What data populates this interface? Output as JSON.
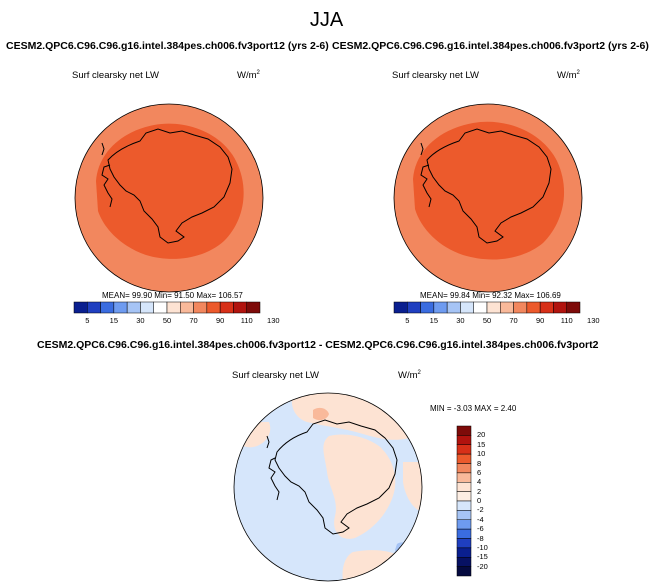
{
  "page_title": "JJA",
  "panels": [
    {
      "title": "CESM2.QPC6.C96.C96.g16.intel.384pes.ch006.fv3port12 (yrs 2-6)",
      "variable": "Surf clearsky net LW",
      "units_base": "W/m",
      "units_exp": "2",
      "stats": {
        "mean_label": "MEAN=",
        "mean": "99.90",
        "min_label": "Min=",
        "min": "91.50",
        "max_label": "Max=",
        "max": "106.57"
      }
    },
    {
      "title": "CESM2.QPC6.C96.C96.g16.intel.384pes.ch006.fv3port2 (yrs 2-6)",
      "variable": "Surf clearsky net LW",
      "units_base": "W/m",
      "units_exp": "2",
      "stats": {
        "mean_label": "MEAN=",
        "mean": "99.84",
        "min_label": "Min=",
        "min": "92.32",
        "max_label": "Max=",
        "max": "106.69"
      }
    },
    {
      "title": "CESM2.QPC6.C96.C96.g16.intel.384pes.ch006.fv3port12 - CESM2.QPC6.C96.C96.g16.intel.384pes.ch006.fv3port2",
      "variable": "Surf clearsky net LW",
      "units_base": "W/m",
      "units_exp": "2",
      "stats": {
        "min_label": "MIN =",
        "min": "-3.03",
        "max_label": "MAX =",
        "max": "2.40"
      }
    }
  ],
  "chart_data": [
    {
      "type": "heatmap",
      "projection": "south-polar stereographic",
      "title": "CESM2.QPC6.C96.C96.g16.intel.384pes.ch006.fv3port12 (yrs 2-6)",
      "variable": "Surf clearsky net LW",
      "units": "W/m2",
      "colorbar_levels": [
        "5",
        "15",
        "30",
        "50",
        "70",
        "90",
        "110",
        "130"
      ],
      "colorbar_colors": [
        "#0a1f8f",
        "#1f3fc0",
        "#3a6ce0",
        "#6e9bf0",
        "#a6c4f5",
        "#d6e6fb",
        "#ffffff",
        "#fde3d3",
        "#f9b99a",
        "#f2875e",
        "#ec5a2c",
        "#d73018",
        "#b1130e",
        "#7e0b09"
      ],
      "regions": [
        {
          "name": "outer ring",
          "value_range": [
            90,
            110
          ],
          "color": "#f2875e"
        },
        {
          "name": "interior",
          "value_range": [
            90,
            110
          ],
          "color": "#ec5a2c"
        }
      ],
      "mean": 99.9,
      "min": 91.5,
      "max": 106.57
    },
    {
      "type": "heatmap",
      "projection": "south-polar stereographic",
      "title": "CESM2.QPC6.C96.C96.g16.intel.384pes.ch006.fv3port2 (yrs 2-6)",
      "variable": "Surf clearsky net LW",
      "units": "W/m2",
      "colorbar_levels": [
        "5",
        "15",
        "30",
        "50",
        "70",
        "90",
        "110",
        "130"
      ],
      "colorbar_colors": [
        "#0a1f8f",
        "#1f3fc0",
        "#3a6ce0",
        "#6e9bf0",
        "#a6c4f5",
        "#d6e6fb",
        "#ffffff",
        "#fde3d3",
        "#f9b99a",
        "#f2875e",
        "#ec5a2c",
        "#d73018",
        "#b1130e",
        "#7e0b09"
      ],
      "regions": [
        {
          "name": "outer ring",
          "value_range": [
            90,
            110
          ],
          "color": "#f2875e"
        },
        {
          "name": "interior",
          "value_range": [
            90,
            110
          ],
          "color": "#ec5a2c"
        }
      ],
      "mean": 99.84,
      "min": 92.32,
      "max": 106.69
    },
    {
      "type": "heatmap",
      "projection": "south-polar stereographic",
      "title": "CESM2.QPC6.C96.C96.g16.intel.384pes.ch006.fv3port12 - CESM2.QPC6.C96.C96.g16.intel.384pes.ch006.fv3port2",
      "variable": "Surf clearsky net LW",
      "units": "W/m2",
      "colorbar_levels": [
        "20",
        "15",
        "10",
        "8",
        "6",
        "4",
        "2",
        "0",
        "-2",
        "-4",
        "-6",
        "-8",
        "-10",
        "-15",
        "-20"
      ],
      "colorbar_colors": [
        "#7e0b09",
        "#b1130e",
        "#d73018",
        "#ec5a2c",
        "#f2875e",
        "#f9b99a",
        "#fde3d3",
        "#fdeee3",
        "#d6e6fb",
        "#a6c4f5",
        "#6e9bf0",
        "#3a6ce0",
        "#1f3fc0",
        "#0a1f8f",
        "#071163",
        "#050a40"
      ],
      "regions": [
        {
          "name": "mostly negative",
          "value_range": [
            -2,
            0
          ],
          "color": "#d6e6fb"
        },
        {
          "name": "positive patches",
          "value_range": [
            0,
            2
          ],
          "color": "#fde3d3"
        }
      ],
      "min": -3.03,
      "max": 2.4
    }
  ]
}
